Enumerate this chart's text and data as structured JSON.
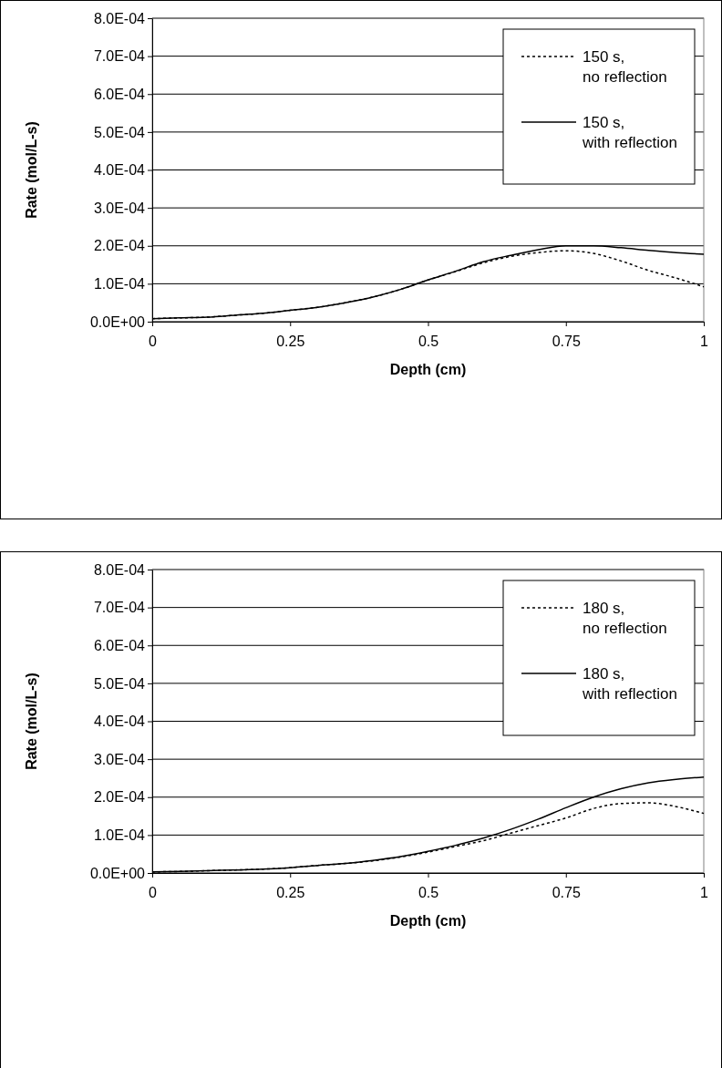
{
  "chart_data": [
    {
      "type": "line",
      "xlabel": "Depth (cm)",
      "ylabel": "Rate (mol/L-s)",
      "x": [
        0,
        0.05,
        0.1,
        0.15,
        0.2,
        0.25,
        0.3,
        0.35,
        0.4,
        0.45,
        0.5,
        0.55,
        0.6,
        0.65,
        0.7,
        0.75,
        0.8,
        0.85,
        0.9,
        0.95,
        1
      ],
      "series": [
        {
          "name": "150 s, no reflection",
          "color": "#000000",
          "line_style": "dotted",
          "values": [
            8e-06,
            1e-05,
            1.2e-05,
            1.7e-05,
            2.2e-05,
            3e-05,
            3.8e-05,
            5e-05,
            6.5e-05,
            8.5e-05,
            0.00011,
            0.000132,
            0.000155,
            0.000172,
            0.000182,
            0.000187,
            0.00018,
            0.00016,
            0.000135,
            0.000115,
            9.2e-05
          ]
        },
        {
          "name": "150 s, with reflection",
          "color": "#000000",
          "line_style": "solid",
          "values": [
            8e-06,
            1e-05,
            1.2e-05,
            1.7e-05,
            2.2e-05,
            3e-05,
            3.8e-05,
            5e-05,
            6.5e-05,
            8.5e-05,
            0.00011,
            0.000133,
            0.000158,
            0.000175,
            0.00019,
            0.0002,
            0.0002,
            0.000195,
            0.000188,
            0.000182,
            0.000178
          ]
        }
      ],
      "xlim": [
        0,
        1
      ],
      "xticks": [
        0,
        0.25,
        0.5,
        0.75,
        1
      ],
      "ylim": [
        0,
        0.0008
      ],
      "yticks": [
        {
          "value": 0,
          "label": "0.0E+00"
        },
        {
          "value": 0.0001,
          "label": "1.0E-04"
        },
        {
          "value": 0.0002,
          "label": "2.0E-04"
        },
        {
          "value": 0.0003,
          "label": "3.0E-04"
        },
        {
          "value": 0.0004,
          "label": "4.0E-04"
        },
        {
          "value": 0.0005,
          "label": "5.0E-04"
        },
        {
          "value": 0.0006,
          "label": "6.0E-04"
        },
        {
          "value": 0.0007,
          "label": "7.0E-04"
        },
        {
          "value": 0.0008,
          "label": "8.0E-04"
        }
      ],
      "grid": "y",
      "legend": "top right",
      "marker": "none"
    },
    {
      "type": "line",
      "xlabel": "Depth (cm)",
      "ylabel": "Rate (mol/L-s)",
      "x": [
        0,
        0.05,
        0.1,
        0.15,
        0.2,
        0.25,
        0.3,
        0.35,
        0.4,
        0.45,
        0.5,
        0.55,
        0.6,
        0.65,
        0.7,
        0.75,
        0.8,
        0.85,
        0.9,
        0.95,
        1
      ],
      "series": [
        {
          "name": "180 s, no reflection",
          "color": "#000000",
          "line_style": "dotted",
          "values": [
            3e-06,
            4e-06,
            6e-06,
            8e-06,
            1e-05,
            1.4e-05,
            2e-05,
            2.5e-05,
            3.2e-05,
            4.2e-05,
            5.5e-05,
            7e-05,
            8.5e-05,
            0.000105,
            0.000125,
            0.000145,
            0.00017,
            0.000183,
            0.000185,
            0.000175,
            0.000157
          ]
        },
        {
          "name": "180 s, with reflection",
          "color": "#000000",
          "line_style": "solid",
          "values": [
            3e-06,
            4e-06,
            6e-06,
            8e-06,
            1e-05,
            1.4e-05,
            2e-05,
            2.5e-05,
            3.3e-05,
            4.3e-05,
            5.7e-05,
            7.3e-05,
            9.2e-05,
            0.000115,
            0.000142,
            0.000172,
            0.0002,
            0.000222,
            0.000238,
            0.000247,
            0.000253
          ]
        }
      ],
      "xlim": [
        0,
        1
      ],
      "xticks": [
        0,
        0.25,
        0.5,
        0.75,
        1
      ],
      "ylim": [
        0,
        0.0008
      ],
      "yticks": [
        {
          "value": 0,
          "label": "0.0E+00"
        },
        {
          "value": 0.0001,
          "label": "1.0E-04"
        },
        {
          "value": 0.0002,
          "label": "2.0E-04"
        },
        {
          "value": 0.0003,
          "label": "3.0E-04"
        },
        {
          "value": 0.0004,
          "label": "4.0E-04"
        },
        {
          "value": 0.0005,
          "label": "5.0E-04"
        },
        {
          "value": 0.0006,
          "label": "6.0E-04"
        },
        {
          "value": 0.0007,
          "label": "7.0E-04"
        },
        {
          "value": 0.0008,
          "label": "8.0E-04"
        }
      ],
      "grid": "y",
      "legend": "top right",
      "marker": "none"
    }
  ]
}
